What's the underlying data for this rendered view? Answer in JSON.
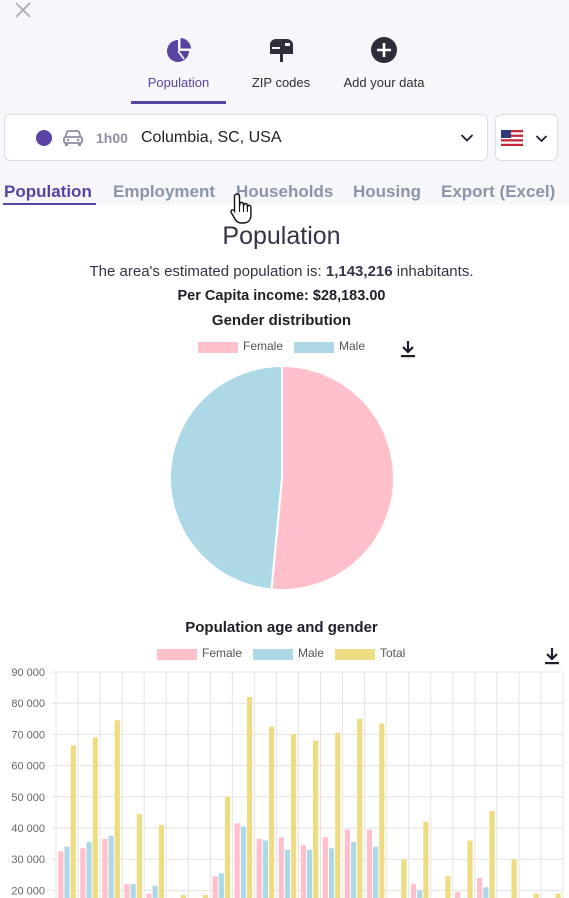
{
  "nav": {
    "items": [
      {
        "label": "Population",
        "icon": "pie-chart-icon",
        "active": true
      },
      {
        "label": "ZIP codes",
        "icon": "mailbox-icon",
        "active": false
      },
      {
        "label": "Add your data",
        "icon": "plus-circle-icon",
        "active": false
      }
    ]
  },
  "location": {
    "time": "1h00",
    "name": "Columbia, SC, USA",
    "marker_color": "#5b43a3",
    "transport_icon": "car-icon"
  },
  "country": {
    "flag_icon": "us-flag-icon"
  },
  "tabs": [
    {
      "label": "Population",
      "active": true
    },
    {
      "label": "Employment",
      "active": false
    },
    {
      "label": "Households",
      "active": false
    },
    {
      "label": "Housing",
      "active": false
    },
    {
      "label": "Export (Excel)",
      "active": false
    }
  ],
  "section": {
    "title": "Population",
    "population_prefix": "The area's estimated population is: ",
    "population_value": "1,143,216",
    "population_suffix": " inhabitants.",
    "income_text": "Per Capita income: $28,183.00"
  },
  "colors": {
    "accent": "#5b43a3",
    "female": "#ffc0cb",
    "male": "#add8e6",
    "total": "#eedc82"
  },
  "chart_data": [
    {
      "type": "pie",
      "title": "Gender distribution",
      "legend_position": "top",
      "categories": [
        "Female",
        "Male"
      ],
      "values": [
        51.5,
        48.5
      ]
    },
    {
      "type": "bar",
      "title": "Population age and gender",
      "legend_position": "top",
      "ylim": [
        15000,
        90000
      ],
      "yticks": [
        20000,
        30000,
        40000,
        50000,
        60000,
        70000,
        80000,
        90000
      ],
      "ytick_labels": [
        "20 000",
        "30 000",
        "40 000",
        "50 000",
        "60 000",
        "70 000",
        "80 000",
        "90 000"
      ],
      "grid": true,
      "series": [
        {
          "name": "Female",
          "values": [
            32500,
            33500,
            36500,
            22000,
            19000,
            10000,
            10000,
            24500,
            41500,
            36500,
            37000,
            34500,
            37000,
            39500,
            39500,
            10000,
            22000,
            10000,
            19500,
            24000,
            10000,
            10000,
            10000
          ]
        },
        {
          "name": "Male",
          "values": [
            34000,
            35500,
            37500,
            22000,
            21500,
            10000,
            10000,
            25500,
            40500,
            36000,
            33000,
            33000,
            33500,
            35500,
            34000,
            10000,
            20000,
            10000,
            10000,
            21000,
            10000,
            10000,
            10000
          ]
        },
        {
          "name": "Total",
          "values": [
            66500,
            69000,
            74500,
            44500,
            41000,
            18500,
            18500,
            50000,
            82000,
            72500,
            70000,
            68000,
            70500,
            75000,
            73500,
            30000,
            42000,
            24500,
            36000,
            45500,
            30000,
            19000,
            19000
          ]
        }
      ]
    }
  ]
}
